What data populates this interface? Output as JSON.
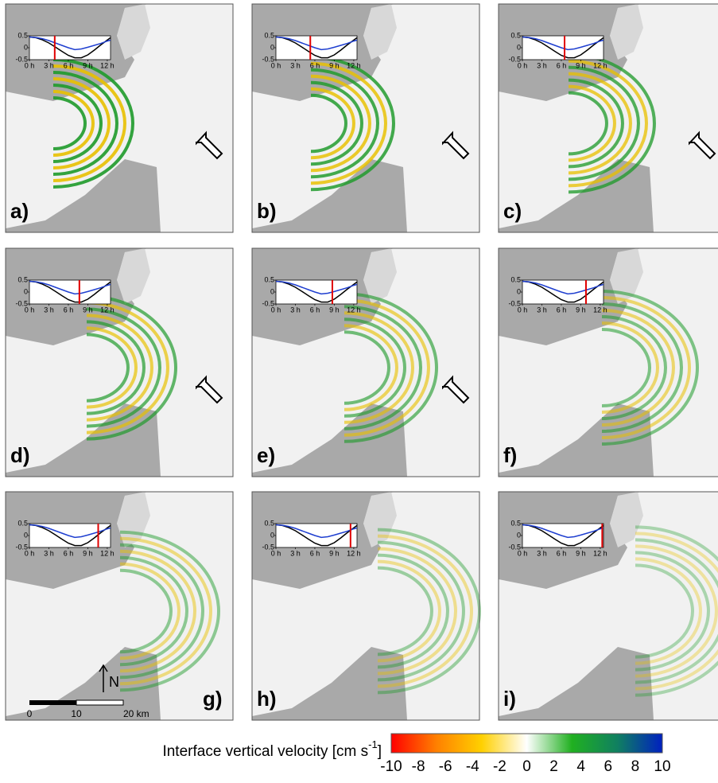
{
  "chart_data": [
    {
      "type": "line",
      "panel": "a)",
      "time_marker": 3.9,
      "x": [
        0,
        1,
        2,
        3,
        4,
        5,
        6,
        7,
        8,
        9,
        10,
        11,
        12,
        12.5
      ],
      "xlim": [
        0,
        12.5
      ],
      "ylim": [
        -0.5,
        0.5
      ],
      "xticks": [
        {
          "value": 0,
          "label": "0 h"
        },
        {
          "value": 3,
          "label": "3 h"
        },
        {
          "value": 6,
          "label": "6 h"
        },
        {
          "value": 9,
          "label": "9 h"
        },
        {
          "value": 12,
          "label": "12 h"
        }
      ],
      "yticks": [
        0.5,
        0,
        -0.5
      ],
      "series": [
        {
          "color": "#000000",
          "values": [
            0.45,
            0.42,
            0.33,
            0.2,
            0.03,
            -0.15,
            -0.32,
            -0.42,
            -0.42,
            -0.3,
            -0.1,
            0.12,
            0.32,
            0.42
          ]
        },
        {
          "color": "#1f3fd0",
          "values": [
            0.45,
            0.43,
            0.38,
            0.3,
            0.2,
            0.1,
            0.0,
            -0.08,
            -0.05,
            0.02,
            0.1,
            0.18,
            0.28,
            0.32
          ]
        }
      ]
    },
    {
      "type": "line",
      "panel": "b)",
      "time_marker": 5.3,
      "x": [
        0,
        1,
        2,
        3,
        4,
        5,
        6,
        7,
        8,
        9,
        10,
        11,
        12,
        12.5
      ],
      "xlim": [
        0,
        12.5
      ],
      "ylim": [
        -0.5,
        0.5
      ],
      "xticks": [
        {
          "value": 0,
          "label": "0 h"
        },
        {
          "value": 3,
          "label": "3 h"
        },
        {
          "value": 6,
          "label": "6 h"
        },
        {
          "value": 9,
          "label": "9 h"
        },
        {
          "value": 12,
          "label": "12 h"
        }
      ],
      "yticks": [
        0.5,
        0,
        -0.5
      ],
      "series": [
        {
          "color": "#000000",
          "values": [
            0.45,
            0.42,
            0.33,
            0.2,
            0.03,
            -0.15,
            -0.32,
            -0.42,
            -0.42,
            -0.3,
            -0.1,
            0.12,
            0.32,
            0.42
          ]
        },
        {
          "color": "#1f3fd0",
          "values": [
            0.45,
            0.43,
            0.38,
            0.3,
            0.2,
            0.1,
            0.0,
            -0.08,
            -0.05,
            0.02,
            0.1,
            0.18,
            0.28,
            0.32
          ]
        }
      ]
    },
    {
      "type": "line",
      "panel": "c)",
      "time_marker": 6.5,
      "x": [
        0,
        1,
        2,
        3,
        4,
        5,
        6,
        7,
        8,
        9,
        10,
        11,
        12,
        12.5
      ],
      "xlim": [
        0,
        12.5
      ],
      "ylim": [
        -0.5,
        0.5
      ],
      "xticks": [
        {
          "value": 0,
          "label": "0 h"
        },
        {
          "value": 3,
          "label": "3 h"
        },
        {
          "value": 6,
          "label": "6 h"
        },
        {
          "value": 9,
          "label": "9 h"
        },
        {
          "value": 12,
          "label": "12 h"
        }
      ],
      "yticks": [
        0.5,
        0,
        -0.5
      ],
      "series": [
        {
          "color": "#000000",
          "values": [
            0.45,
            0.42,
            0.33,
            0.2,
            0.03,
            -0.15,
            -0.32,
            -0.42,
            -0.42,
            -0.3,
            -0.1,
            0.12,
            0.32,
            0.42
          ]
        },
        {
          "color": "#1f3fd0",
          "values": [
            0.45,
            0.43,
            0.38,
            0.3,
            0.2,
            0.1,
            0.0,
            -0.08,
            -0.05,
            0.02,
            0.1,
            0.18,
            0.28,
            0.32
          ]
        }
      ]
    },
    {
      "type": "line",
      "panel": "d)",
      "time_marker": 7.7,
      "x": [
        0,
        1,
        2,
        3,
        4,
        5,
        6,
        7,
        8,
        9,
        10,
        11,
        12,
        12.5
      ],
      "xlim": [
        0,
        12.5
      ],
      "ylim": [
        -0.5,
        0.5
      ],
      "xticks": [
        {
          "value": 0,
          "label": "0 h"
        },
        {
          "value": 3,
          "label": "3 h"
        },
        {
          "value": 6,
          "label": "6 h"
        },
        {
          "value": 9,
          "label": "9 h"
        },
        {
          "value": 12,
          "label": "12 h"
        }
      ],
      "yticks": [
        0.5,
        0,
        -0.5
      ],
      "series": [
        {
          "color": "#000000",
          "values": [
            0.45,
            0.42,
            0.33,
            0.2,
            0.03,
            -0.15,
            -0.32,
            -0.42,
            -0.42,
            -0.3,
            -0.1,
            0.12,
            0.32,
            0.42
          ]
        },
        {
          "color": "#1f3fd0",
          "values": [
            0.45,
            0.43,
            0.38,
            0.3,
            0.2,
            0.1,
            0.0,
            -0.08,
            -0.05,
            0.02,
            0.1,
            0.18,
            0.28,
            0.32
          ]
        }
      ]
    },
    {
      "type": "line",
      "panel": "e)",
      "time_marker": 8.7,
      "x": [
        0,
        1,
        2,
        3,
        4,
        5,
        6,
        7,
        8,
        9,
        10,
        11,
        12,
        12.5
      ],
      "xlim": [
        0,
        12.5
      ],
      "ylim": [
        -0.5,
        0.5
      ],
      "xticks": [
        {
          "value": 0,
          "label": "0 h"
        },
        {
          "value": 3,
          "label": "3 h"
        },
        {
          "value": 6,
          "label": "6 h"
        },
        {
          "value": 9,
          "label": "9 h"
        },
        {
          "value": 12,
          "label": "12 h"
        }
      ],
      "yticks": [
        0.5,
        0,
        -0.5
      ],
      "series": [
        {
          "color": "#000000",
          "values": [
            0.45,
            0.42,
            0.33,
            0.2,
            0.03,
            -0.15,
            -0.32,
            -0.42,
            -0.42,
            -0.3,
            -0.1,
            0.12,
            0.32,
            0.42
          ]
        },
        {
          "color": "#1f3fd0",
          "values": [
            0.45,
            0.43,
            0.38,
            0.3,
            0.2,
            0.1,
            0.0,
            -0.08,
            -0.05,
            0.02,
            0.1,
            0.18,
            0.28,
            0.32
          ]
        }
      ]
    },
    {
      "type": "line",
      "panel": "f)",
      "time_marker": 9.8,
      "x": [
        0,
        1,
        2,
        3,
        4,
        5,
        6,
        7,
        8,
        9,
        10,
        11,
        12,
        12.5
      ],
      "xlim": [
        0,
        12.5
      ],
      "ylim": [
        -0.5,
        0.5
      ],
      "xticks": [
        {
          "value": 0,
          "label": "0 h"
        },
        {
          "value": 3,
          "label": "3 h"
        },
        {
          "value": 6,
          "label": "6 h"
        },
        {
          "value": 9,
          "label": "9 h"
        },
        {
          "value": 12,
          "label": "12 h"
        }
      ],
      "yticks": [
        0.5,
        0,
        -0.5
      ],
      "series": [
        {
          "color": "#000000",
          "values": [
            0.45,
            0.42,
            0.33,
            0.2,
            0.03,
            -0.15,
            -0.32,
            -0.42,
            -0.42,
            -0.3,
            -0.1,
            0.12,
            0.32,
            0.42
          ]
        },
        {
          "color": "#1f3fd0",
          "values": [
            0.45,
            0.43,
            0.38,
            0.3,
            0.2,
            0.1,
            0.0,
            -0.08,
            -0.05,
            0.02,
            0.1,
            0.18,
            0.28,
            0.32
          ]
        }
      ]
    },
    {
      "type": "line",
      "panel": "g)",
      "time_marker": 10.6,
      "x": [
        0,
        1,
        2,
        3,
        4,
        5,
        6,
        7,
        8,
        9,
        10,
        11,
        12,
        12.5
      ],
      "xlim": [
        0,
        12.5
      ],
      "ylim": [
        -0.5,
        0.5
      ],
      "xticks": [
        {
          "value": 0,
          "label": "0 h"
        },
        {
          "value": 3,
          "label": "3 h"
        },
        {
          "value": 6,
          "label": "6 h"
        },
        {
          "value": 9,
          "label": "9 h"
        },
        {
          "value": 12,
          "label": "12 h"
        }
      ],
      "yticks": [
        0.5,
        0,
        -0.5
      ],
      "series": [
        {
          "color": "#000000",
          "values": [
            0.45,
            0.42,
            0.33,
            0.2,
            0.03,
            -0.15,
            -0.32,
            -0.42,
            -0.42,
            -0.3,
            -0.1,
            0.12,
            0.32,
            0.42
          ]
        },
        {
          "color": "#1f3fd0",
          "values": [
            0.45,
            0.43,
            0.38,
            0.3,
            0.2,
            0.1,
            0.0,
            -0.08,
            -0.05,
            0.02,
            0.1,
            0.18,
            0.28,
            0.32
          ]
        }
      ]
    },
    {
      "type": "line",
      "panel": "h)",
      "time_marker": 11.5,
      "x": [
        0,
        1,
        2,
        3,
        4,
        5,
        6,
        7,
        8,
        9,
        10,
        11,
        12,
        12.5
      ],
      "xlim": [
        0,
        12.5
      ],
      "ylim": [
        -0.5,
        0.5
      ],
      "xticks": [
        {
          "value": 0,
          "label": "0 h"
        },
        {
          "value": 3,
          "label": "3 h"
        },
        {
          "value": 6,
          "label": "6 h"
        },
        {
          "value": 9,
          "label": "9 h"
        },
        {
          "value": 12,
          "label": "12 h"
        }
      ],
      "yticks": [
        0.5,
        0,
        -0.5
      ],
      "series": [
        {
          "color": "#000000",
          "values": [
            0.45,
            0.42,
            0.33,
            0.2,
            0.03,
            -0.15,
            -0.32,
            -0.42,
            -0.42,
            -0.3,
            -0.1,
            0.12,
            0.32,
            0.42
          ]
        },
        {
          "color": "#1f3fd0",
          "values": [
            0.45,
            0.43,
            0.38,
            0.3,
            0.2,
            0.1,
            0.0,
            -0.08,
            -0.05,
            0.02,
            0.1,
            0.18,
            0.28,
            0.32
          ]
        }
      ]
    },
    {
      "type": "line",
      "panel": "i)",
      "time_marker": 12.3,
      "x": [
        0,
        1,
        2,
        3,
        4,
        5,
        6,
        7,
        8,
        9,
        10,
        11,
        12,
        12.5
      ],
      "xlim": [
        0,
        12.5
      ],
      "ylim": [
        -0.5,
        0.5
      ],
      "xticks": [
        {
          "value": 0,
          "label": "0 h"
        },
        {
          "value": 3,
          "label": "3 h"
        },
        {
          "value": 6,
          "label": "6 h"
        },
        {
          "value": 9,
          "label": "9 h"
        },
        {
          "value": 12,
          "label": "12 h"
        }
      ],
      "yticks": [
        0.5,
        0,
        -0.5
      ],
      "series": [
        {
          "color": "#000000",
          "values": [
            0.45,
            0.42,
            0.33,
            0.2,
            0.03,
            -0.15,
            -0.32,
            -0.42,
            -0.42,
            -0.3,
            -0.1,
            0.12,
            0.32,
            0.42
          ]
        },
        {
          "color": "#1f3fd0",
          "values": [
            0.45,
            0.43,
            0.38,
            0.3,
            0.2,
            0.1,
            0.0,
            -0.08,
            -0.05,
            0.02,
            0.1,
            0.18,
            0.28,
            0.32
          ]
        }
      ]
    }
  ],
  "colorbar": {
    "label": "Interface vertical velocity [cm s",
    "label_sup": "-1",
    "label_end": "]",
    "lim": [
      -10,
      10
    ],
    "ticks": [
      -10,
      -8,
      -6,
      -4,
      -2,
      0,
      2,
      4,
      6,
      8,
      10
    ],
    "colors": [
      "#ff0000",
      "#ff8000",
      "#ffd000",
      "#ffffff",
      "#20b020",
      "#108060",
      "#0020c0"
    ]
  },
  "scale_bar": {
    "ticks": [
      0,
      10,
      {
        "value": 20,
        "label": "20 km"
      }
    ],
    "north": "N"
  }
}
